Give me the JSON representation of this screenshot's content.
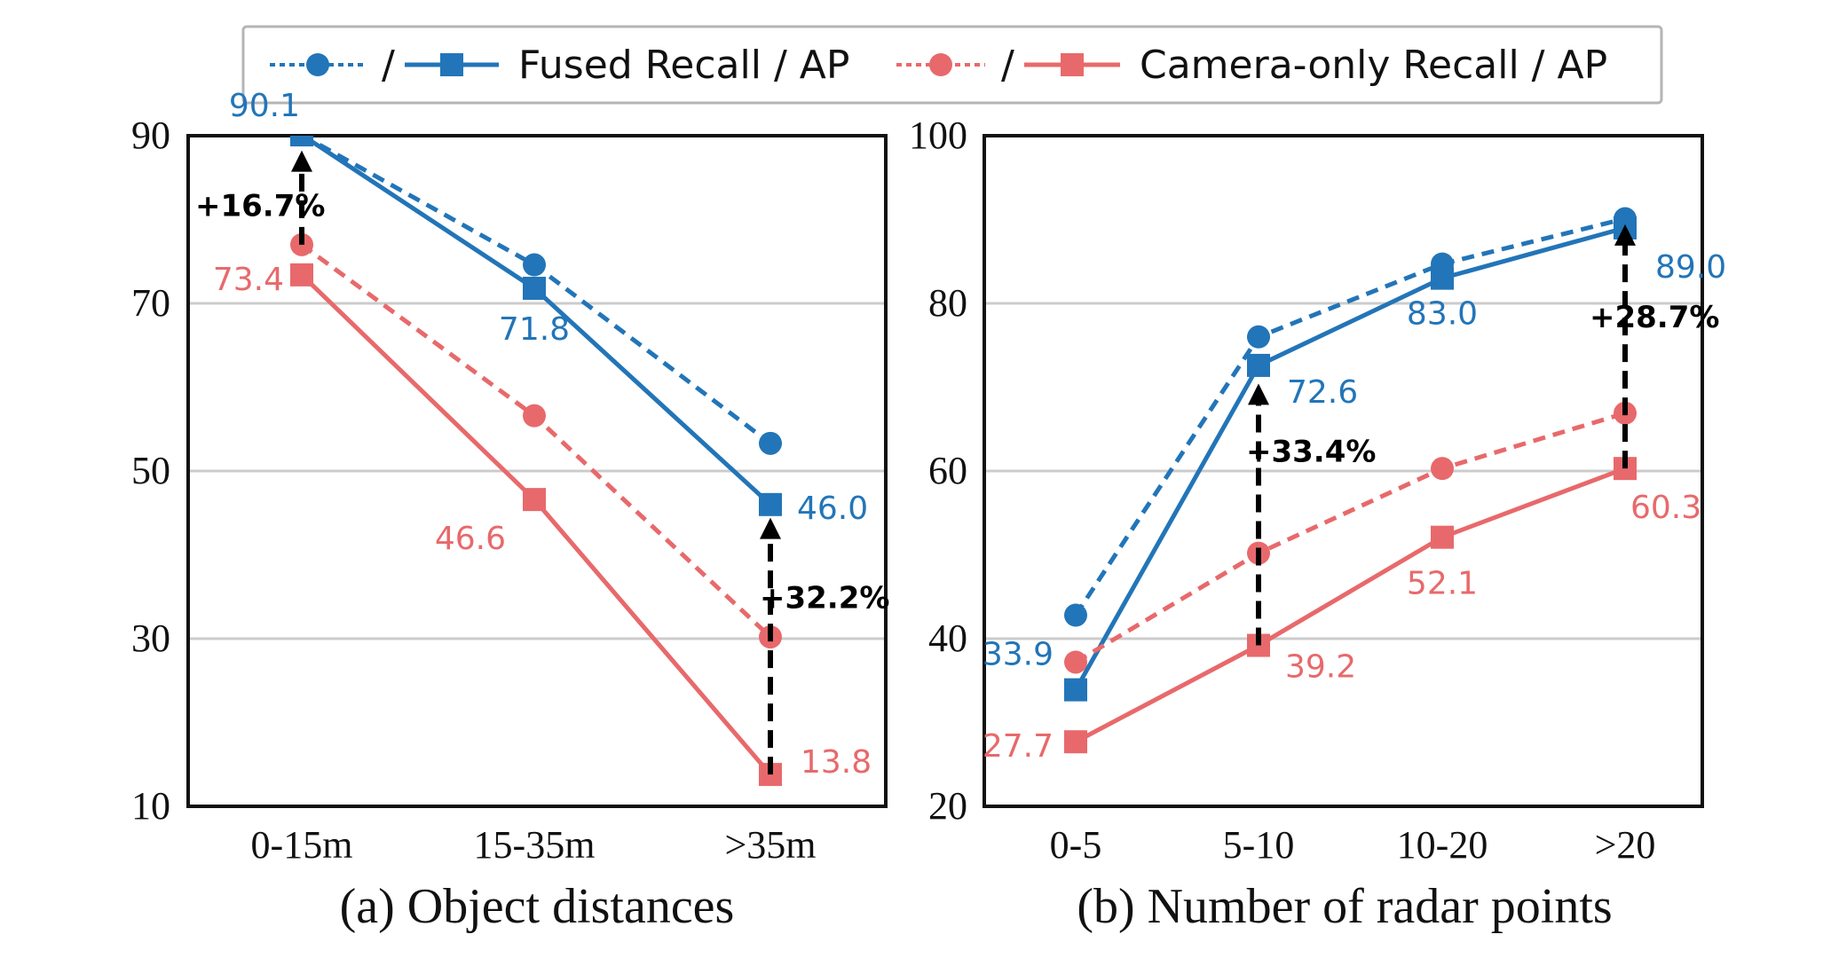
{
  "legend": {
    "separator": "/",
    "fused_label": "Fused Recall / AP",
    "camera_label": "Camera-only Recall / AP"
  },
  "colors": {
    "fused": "#2275b8",
    "camera": "#e8696b",
    "annotation": "#000000",
    "grid": "#cccccc"
  },
  "chart_data": [
    {
      "type": "line",
      "id": "a",
      "title": "(a) Object distances",
      "xlabel": "",
      "ylabel": "",
      "categories": [
        "0-15m",
        "15-35m",
        ">35m"
      ],
      "ylim": [
        10,
        90
      ],
      "yticks": [
        90,
        70,
        50,
        30,
        10
      ],
      "grid": true,
      "series": [
        {
          "name": "Fused Recall",
          "group": "fused",
          "style": "dashed",
          "marker": "circle",
          "values": [
            90.1,
            74.6,
            53.3
          ]
        },
        {
          "name": "Fused AP",
          "group": "fused",
          "style": "solid",
          "marker": "square",
          "values": [
            90.1,
            71.8,
            46.0
          ],
          "labels": [
            "90.1",
            "71.8",
            "46.0"
          ]
        },
        {
          "name": "Camera-only Recall",
          "group": "camera",
          "style": "dashed",
          "marker": "circle",
          "values": [
            77.0,
            56.6,
            30.2
          ]
        },
        {
          "name": "Camera-only AP",
          "group": "camera",
          "style": "solid",
          "marker": "square",
          "values": [
            73.4,
            46.6,
            13.8
          ],
          "labels": [
            "73.4",
            "46.6",
            "13.8"
          ]
        }
      ],
      "annotations": [
        {
          "category": "0-15m",
          "from": 77.0,
          "to": 87.6,
          "text": "+16.7%"
        },
        {
          "category": ">35m",
          "from": 13.8,
          "to": 43.8,
          "text": "+32.2%"
        }
      ]
    },
    {
      "type": "line",
      "id": "b",
      "title": "(b) Number of radar points",
      "xlabel": "",
      "ylabel": "",
      "categories": [
        "0-5",
        "5-10",
        "10-20",
        ">20"
      ],
      "ylim": [
        20,
        100
      ],
      "yticks": [
        100,
        80,
        60,
        40,
        20
      ],
      "grid": true,
      "series": [
        {
          "name": "Fused Recall",
          "group": "fused",
          "style": "dashed",
          "marker": "circle",
          "values": [
            42.8,
            76.0,
            84.7,
            90.1
          ]
        },
        {
          "name": "Fused AP",
          "group": "fused",
          "style": "solid",
          "marker": "square",
          "values": [
            33.9,
            72.6,
            83.0,
            89.0
          ],
          "labels": [
            "33.9",
            "72.6",
            "83.0",
            "89.0"
          ]
        },
        {
          "name": "Camera-only Recall",
          "group": "camera",
          "style": "dashed",
          "marker": "circle",
          "values": [
            37.2,
            50.2,
            60.3,
            66.9
          ]
        },
        {
          "name": "Camera-only AP",
          "group": "camera",
          "style": "solid",
          "marker": "square",
          "values": [
            27.7,
            39.2,
            52.1,
            60.3
          ],
          "labels": [
            "27.7",
            "39.2",
            "52.1",
            "60.3"
          ]
        }
      ],
      "annotations": [
        {
          "category": "5-10",
          "from": 39.2,
          "to": 69.8,
          "text": "+33.4%"
        },
        {
          "category": ">20",
          "from": 60.3,
          "to": 88.8,
          "text": "+28.7%"
        }
      ]
    }
  ]
}
